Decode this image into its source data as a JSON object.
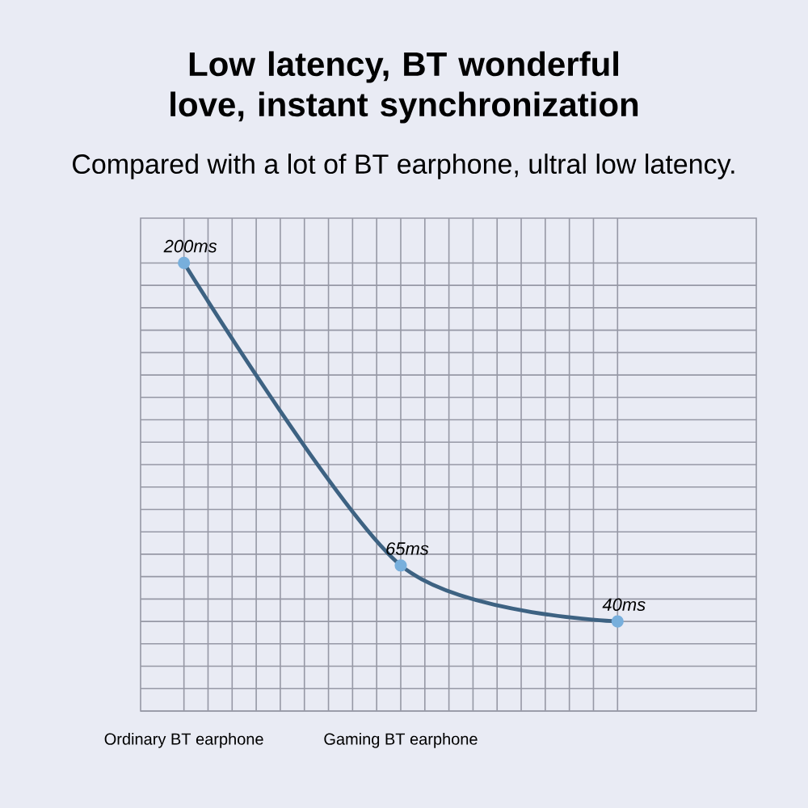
{
  "chart_data": {
    "type": "line",
    "title": "Low latency, BT wonderful love, instant synchronization",
    "subtitle": "Compared with a lot of BT earphone, ultral low latency.",
    "categories": [
      "Ordinary BT earphone",
      "Gaming BT earphone",
      null
    ],
    "values": [
      200,
      65,
      40
    ],
    "value_labels": [
      "200ms",
      "65ms",
      "40ms"
    ],
    "color": "#3d6282",
    "marker": "circle",
    "ylim": [
      0,
      220
    ],
    "grid": true,
    "tick_labels": "x"
  }
}
